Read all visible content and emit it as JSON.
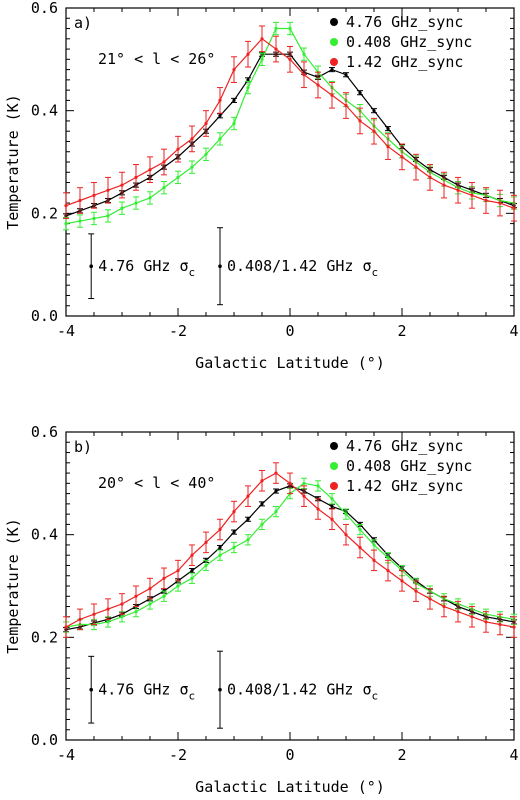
{
  "chart_data": [
    {
      "type": "line",
      "panel_label": "a)",
      "range_text": "21° < l < 26°",
      "xlabel": "Galactic Latitude (°)",
      "ylabel": "Temperature (K)",
      "xlim": [
        -4,
        4
      ],
      "ylim": [
        0,
        0.6
      ],
      "xticks": [
        "-4",
        "-2",
        "0",
        "2",
        "4"
      ],
      "yticks": [
        "0.0",
        "0.2",
        "0.4",
        "0.6"
      ],
      "legend_position": "top-right",
      "series": [
        {
          "name": "4.76 GHz_sync",
          "color": "#000000",
          "error": 0.004,
          "x": [
            -4.0,
            -3.75,
            -3.5,
            -3.25,
            -3.0,
            -2.75,
            -2.5,
            -2.25,
            -2.0,
            -1.75,
            -1.5,
            -1.25,
            -1.0,
            -0.75,
            -0.5,
            -0.25,
            0.0,
            0.25,
            0.5,
            0.75,
            1.0,
            1.25,
            1.5,
            1.75,
            2.0,
            2.25,
            2.5,
            2.75,
            3.0,
            3.25,
            3.5,
            3.75,
            4.0
          ],
          "values": [
            0.195,
            0.205,
            0.215,
            0.225,
            0.24,
            0.255,
            0.27,
            0.29,
            0.31,
            0.335,
            0.36,
            0.39,
            0.42,
            0.46,
            0.51,
            0.51,
            0.51,
            0.475,
            0.465,
            0.48,
            0.47,
            0.435,
            0.4,
            0.365,
            0.33,
            0.305,
            0.285,
            0.27,
            0.255,
            0.245,
            0.235,
            0.225,
            0.215
          ]
        },
        {
          "name": "0.408 GHz_sync",
          "color": "#33ee33",
          "error": 0.012,
          "x": [
            -4.0,
            -3.75,
            -3.5,
            -3.25,
            -3.0,
            -2.75,
            -2.5,
            -2.25,
            -2.0,
            -1.75,
            -1.5,
            -1.25,
            -1.0,
            -0.75,
            -0.5,
            -0.25,
            0.0,
            0.25,
            0.5,
            0.75,
            1.0,
            1.25,
            1.5,
            1.75,
            2.0,
            2.25,
            2.5,
            2.75,
            3.0,
            3.25,
            3.5,
            3.75,
            4.0
          ],
          "values": [
            0.18,
            0.185,
            0.19,
            0.195,
            0.21,
            0.22,
            0.23,
            0.25,
            0.27,
            0.29,
            0.315,
            0.345,
            0.375,
            0.445,
            0.5,
            0.56,
            0.56,
            0.51,
            0.475,
            0.445,
            0.42,
            0.4,
            0.37,
            0.345,
            0.32,
            0.3,
            0.28,
            0.265,
            0.25,
            0.24,
            0.235,
            0.225,
            0.22
          ]
        },
        {
          "name": "1.42 GHz_sync",
          "color": "#ee2222",
          "error": 0.025,
          "x": [
            -4.0,
            -3.75,
            -3.5,
            -3.25,
            -3.0,
            -2.75,
            -2.5,
            -2.25,
            -2.0,
            -1.75,
            -1.5,
            -1.25,
            -1.0,
            -0.75,
            -0.5,
            -0.25,
            0.0,
            0.25,
            0.5,
            0.75,
            1.0,
            1.25,
            1.5,
            1.75,
            2.0,
            2.25,
            2.5,
            2.75,
            3.0,
            3.25,
            3.5,
            3.75,
            4.0
          ],
          "values": [
            0.215,
            0.225,
            0.235,
            0.245,
            0.255,
            0.27,
            0.285,
            0.3,
            0.325,
            0.345,
            0.375,
            0.42,
            0.48,
            0.51,
            0.54,
            0.52,
            0.5,
            0.47,
            0.45,
            0.43,
            0.41,
            0.38,
            0.36,
            0.33,
            0.31,
            0.29,
            0.27,
            0.255,
            0.245,
            0.235,
            0.225,
            0.22,
            0.21
          ]
        }
      ],
      "sigma_bars": [
        {
          "label": "4.76 GHz",
          "symbol": "σ",
          "subscript": "c",
          "x": -3.55,
          "center": 0.097,
          "half": 0.063
        },
        {
          "label": "0.408/1.42 GHz",
          "symbol": "σ",
          "subscript": "c",
          "x": -1.25,
          "center": 0.097,
          "half": 0.075
        }
      ]
    },
    {
      "type": "line",
      "panel_label": "b)",
      "range_text": "20° < l < 40°",
      "xlabel": "Galactic Latitude (°)",
      "ylabel": "Temperature (K)",
      "xlim": [
        -4,
        4
      ],
      "ylim": [
        0,
        0.6
      ],
      "xticks": [
        "-4",
        "-2",
        "0",
        "2",
        "4"
      ],
      "yticks": [
        "0.0",
        "0.2",
        "0.4",
        "0.6"
      ],
      "legend_position": "top-right",
      "series": [
        {
          "name": "4.76 GHz_sync",
          "color": "#000000",
          "error": 0.004,
          "x": [
            -4.0,
            -3.75,
            -3.5,
            -3.25,
            -3.0,
            -2.75,
            -2.5,
            -2.25,
            -2.0,
            -1.75,
            -1.5,
            -1.25,
            -1.0,
            -0.75,
            -0.5,
            -0.25,
            0.0,
            0.25,
            0.5,
            0.75,
            1.0,
            1.25,
            1.5,
            1.75,
            2.0,
            2.25,
            2.5,
            2.75,
            3.0,
            3.25,
            3.5,
            3.75,
            4.0
          ],
          "values": [
            0.215,
            0.22,
            0.228,
            0.235,
            0.245,
            0.26,
            0.275,
            0.29,
            0.31,
            0.33,
            0.35,
            0.375,
            0.405,
            0.43,
            0.46,
            0.485,
            0.495,
            0.485,
            0.47,
            0.455,
            0.445,
            0.42,
            0.39,
            0.36,
            0.335,
            0.31,
            0.29,
            0.275,
            0.26,
            0.25,
            0.24,
            0.235,
            0.23
          ]
        },
        {
          "name": "0.408 GHz_sync",
          "color": "#33ee33",
          "error": 0.01,
          "x": [
            -4.0,
            -3.75,
            -3.5,
            -3.25,
            -3.0,
            -2.75,
            -2.5,
            -2.25,
            -2.0,
            -1.75,
            -1.5,
            -1.25,
            -1.0,
            -0.75,
            -0.5,
            -0.25,
            0.0,
            0.25,
            0.5,
            0.75,
            1.0,
            1.25,
            1.5,
            1.75,
            2.0,
            2.25,
            2.5,
            2.75,
            3.0,
            3.25,
            3.5,
            3.75,
            4.0
          ],
          "values": [
            0.22,
            0.225,
            0.225,
            0.23,
            0.24,
            0.25,
            0.265,
            0.28,
            0.3,
            0.315,
            0.34,
            0.36,
            0.375,
            0.39,
            0.42,
            0.445,
            0.48,
            0.5,
            0.495,
            0.47,
            0.44,
            0.41,
            0.38,
            0.355,
            0.33,
            0.305,
            0.29,
            0.275,
            0.265,
            0.255,
            0.245,
            0.24,
            0.235
          ]
        },
        {
          "name": "1.42 GHz_sync",
          "color": "#ee2222",
          "error": 0.02,
          "x": [
            -4.0,
            -3.75,
            -3.5,
            -3.25,
            -3.0,
            -2.75,
            -2.5,
            -2.25,
            -2.0,
            -1.75,
            -1.5,
            -1.25,
            -1.0,
            -0.75,
            -0.5,
            -0.25,
            0.0,
            0.25,
            0.5,
            0.75,
            1.0,
            1.25,
            1.5,
            1.75,
            2.0,
            2.25,
            2.5,
            2.75,
            3.0,
            3.25,
            3.5,
            3.75,
            4.0
          ],
          "values": [
            0.22,
            0.235,
            0.245,
            0.255,
            0.265,
            0.28,
            0.295,
            0.315,
            0.33,
            0.36,
            0.385,
            0.41,
            0.445,
            0.475,
            0.505,
            0.52,
            0.5,
            0.475,
            0.45,
            0.43,
            0.4,
            0.375,
            0.35,
            0.33,
            0.31,
            0.29,
            0.275,
            0.26,
            0.25,
            0.24,
            0.23,
            0.225,
            0.22
          ]
        }
      ],
      "sigma_bars": [
        {
          "label": "4.76 GHz",
          "symbol": "σ",
          "subscript": "c",
          "x": -3.55,
          "center": 0.098,
          "half": 0.065
        },
        {
          "label": "0.408/1.42 GHz",
          "symbol": "σ",
          "subscript": "c",
          "x": -1.25,
          "center": 0.098,
          "half": 0.075
        }
      ]
    }
  ]
}
